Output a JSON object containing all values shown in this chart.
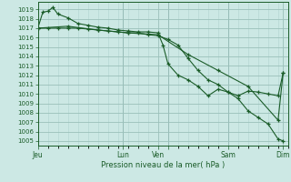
{
  "xlabel": "Pression niveau de la mer( hPa )",
  "ylim": [
    1004.5,
    1019.8
  ],
  "yticks": [
    1005,
    1006,
    1007,
    1008,
    1009,
    1010,
    1011,
    1012,
    1013,
    1014,
    1015,
    1016,
    1017,
    1018,
    1019
  ],
  "background_color": "#cce8e4",
  "grid_color_minor": "#b0d4cf",
  "grid_color_major": "#9ac0ba",
  "line_color": "#1a5c28",
  "line1_x": [
    0,
    0.5,
    1,
    1.5,
    2,
    3,
    4,
    5,
    6,
    7,
    8,
    9,
    10,
    11,
    12,
    12.5,
    13,
    14,
    15,
    16,
    17,
    18,
    19,
    20,
    21,
    22,
    23,
    24,
    24.5
  ],
  "line1_y": [
    1017.0,
    1018.7,
    1018.8,
    1019.2,
    1018.5,
    1018.1,
    1017.5,
    1017.3,
    1017.1,
    1017.0,
    1016.8,
    1016.7,
    1016.6,
    1016.6,
    1016.5,
    1015.2,
    1013.2,
    1012.0,
    1011.5,
    1010.8,
    1009.8,
    1010.5,
    1010.2,
    1009.8,
    1010.3,
    1010.2,
    1010.0,
    1009.8,
    1012.2
  ],
  "line2_x": [
    0,
    1,
    2,
    3,
    4,
    5,
    6,
    7,
    8,
    9,
    10,
    11,
    12,
    13,
    14,
    15,
    16,
    17,
    18,
    19,
    20,
    21,
    22,
    23,
    24,
    24.5
  ],
  "line2_y": [
    1017.0,
    1017.0,
    1017.0,
    1017.0,
    1017.0,
    1016.9,
    1016.8,
    1016.7,
    1016.6,
    1016.5,
    1016.5,
    1016.3,
    1016.2,
    1015.8,
    1015.2,
    1013.8,
    1012.5,
    1011.5,
    1011.0,
    1010.2,
    1009.5,
    1008.2,
    1007.5,
    1006.8,
    1005.2,
    1005.0
  ],
  "line3_x": [
    0,
    3,
    6,
    9,
    12,
    15,
    18,
    21,
    24,
    24.5
  ],
  "line3_y": [
    1017.0,
    1017.2,
    1016.8,
    1016.5,
    1016.3,
    1014.2,
    1012.5,
    1010.8,
    1007.2,
    1012.2
  ],
  "xlim": [
    0,
    25
  ],
  "x_tick_positions": [
    0,
    8.5,
    12,
    13,
    19,
    24.5
  ],
  "x_tick_labels": [
    "Jeu",
    "Lun",
    "Ven",
    "",
    "Sam",
    "Dim"
  ],
  "vlines": [
    8.5,
    13,
    19
  ]
}
